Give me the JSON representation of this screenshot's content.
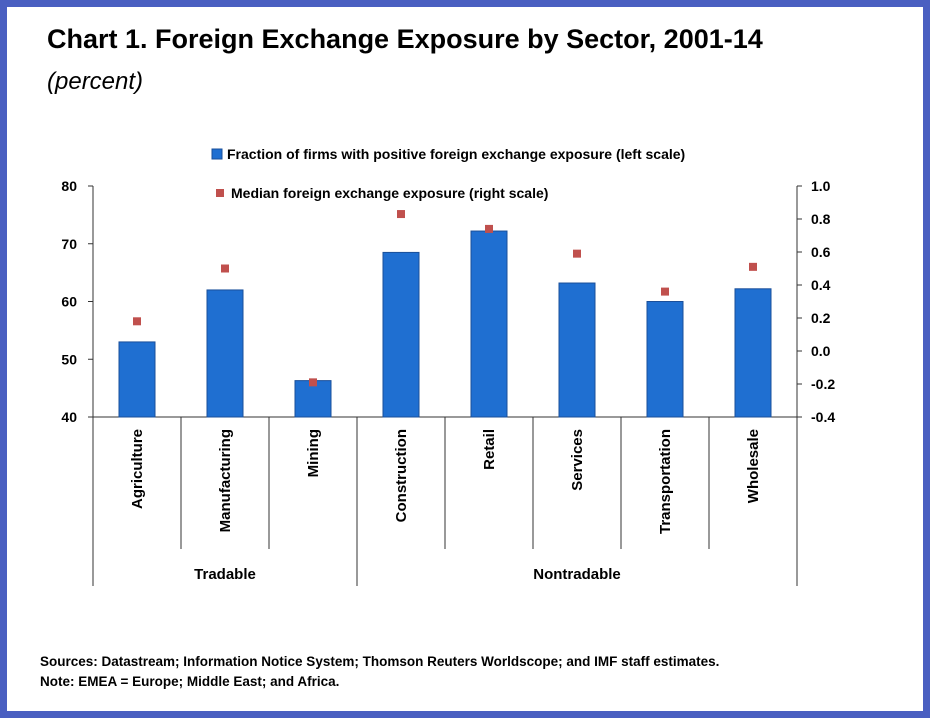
{
  "title": "Chart 1. Foreign Exchange Exposure by Sector, 2001-14",
  "subtitle": "(percent)",
  "chart_data": {
    "type": "bar",
    "categories": [
      "Agriculture",
      "Manufacturing",
      "Mining",
      "Construction",
      "Retail",
      "Services",
      "Transportation",
      "Wholesale"
    ],
    "groups": [
      {
        "label": "Tradable",
        "categories": [
          "Agriculture",
          "Manufacturing",
          "Mining"
        ]
      },
      {
        "label": "Nontradable",
        "categories": [
          "Construction",
          "Retail",
          "Services",
          "Transportation",
          "Wholesale"
        ]
      }
    ],
    "series": [
      {
        "name": "Fraction of firms with positive foreign exchange exposure (left scale)",
        "type": "bar",
        "axis": "left",
        "color": "#1f6fd1",
        "values": [
          53.0,
          62.0,
          46.3,
          68.5,
          72.2,
          63.2,
          60.0,
          62.2
        ]
      },
      {
        "name": "Median foreign exchange exposure (right scale)",
        "type": "scatter",
        "axis": "right",
        "color": "#c0504d",
        "values": [
          0.18,
          0.5,
          -0.19,
          0.83,
          0.74,
          0.59,
          0.36,
          0.51
        ]
      }
    ],
    "y_left": {
      "min": 40,
      "max": 80,
      "ticks": [
        "80",
        "70",
        "60",
        "50",
        "40"
      ]
    },
    "y_right": {
      "min": -0.4,
      "max": 1.0,
      "ticks": [
        "1.0",
        "0.8",
        "0.6",
        "0.4",
        "0.2",
        "0.0",
        "-0.2",
        "-0.4"
      ]
    },
    "legend_position": "top-center",
    "grid": false
  },
  "sources": "Sources: Datastream; Information Notice System; Thomson Reuters Worldscope; and  IMF staff estimates.",
  "note": "Note: EMEA = Europe; Middle East; and Africa."
}
